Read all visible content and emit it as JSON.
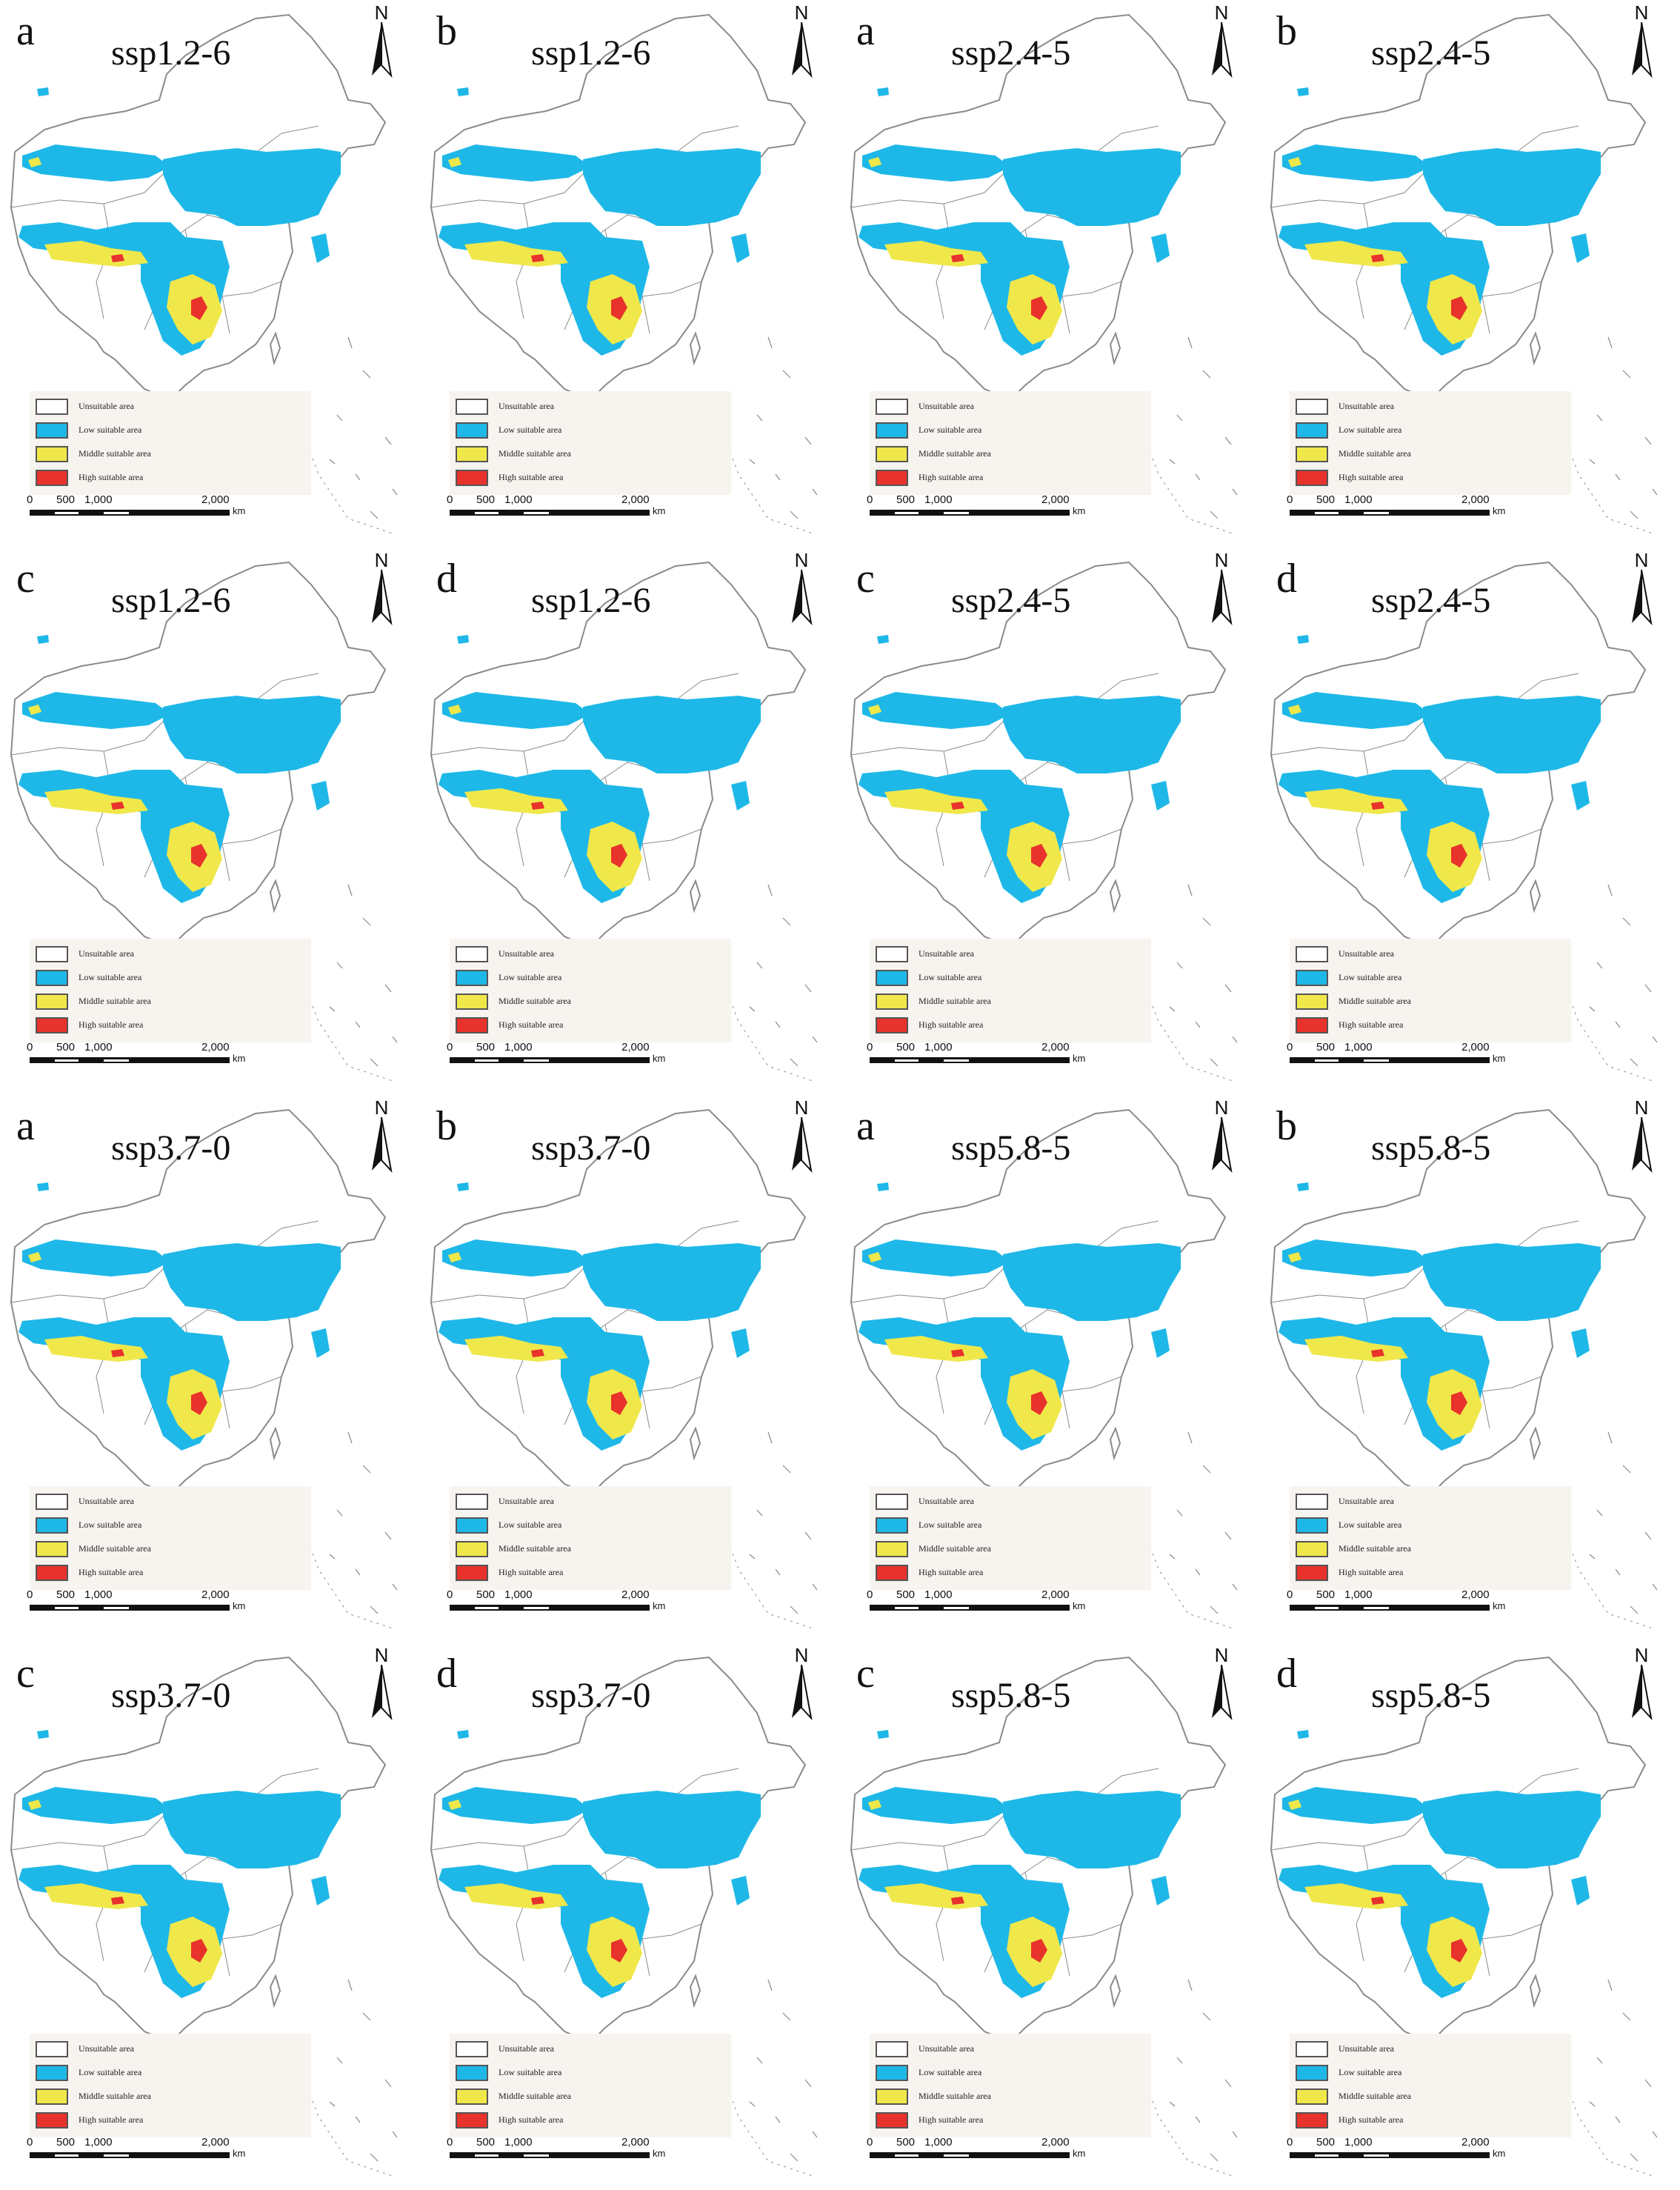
{
  "legend": {
    "items": [
      {
        "label": "Unsuitable area",
        "color": "#ffffff"
      },
      {
        "label": "Low suitable area",
        "color": "#1eb8e8"
      },
      {
        "label": "Middle suitable area",
        "color": "#f0e84a"
      },
      {
        "label": "High suitable area",
        "color": "#e8322c"
      }
    ]
  },
  "scale": {
    "ticks": [
      "0",
      "500",
      "1,000",
      "2,000"
    ],
    "unit": "km"
  },
  "north_label": "N",
  "colors": {
    "boundary": "#8a8a8a",
    "low": "#1eb8e8",
    "middle": "#f0e84a",
    "high": "#e8322c"
  },
  "panels": [
    {
      "letter": "a",
      "scenario": "ssp1.2-6"
    },
    {
      "letter": "b",
      "scenario": "ssp1.2-6"
    },
    {
      "letter": "a",
      "scenario": "ssp2.4-5"
    },
    {
      "letter": "b",
      "scenario": "ssp2.4-5"
    },
    {
      "letter": "c",
      "scenario": "ssp1.2-6"
    },
    {
      "letter": "d",
      "scenario": "ssp1.2-6"
    },
    {
      "letter": "c",
      "scenario": "ssp2.4-5"
    },
    {
      "letter": "d",
      "scenario": "ssp2.4-5"
    },
    {
      "letter": "a",
      "scenario": "ssp3.7-0"
    },
    {
      "letter": "b",
      "scenario": "ssp3.7-0"
    },
    {
      "letter": "a",
      "scenario": "ssp5.8-5"
    },
    {
      "letter": "b",
      "scenario": "ssp5.8-5"
    },
    {
      "letter": "c",
      "scenario": "ssp3.7-0"
    },
    {
      "letter": "d",
      "scenario": "ssp3.7-0"
    },
    {
      "letter": "c",
      "scenario": "ssp5.8-5"
    },
    {
      "letter": "d",
      "scenario": "ssp5.8-5"
    }
  ]
}
